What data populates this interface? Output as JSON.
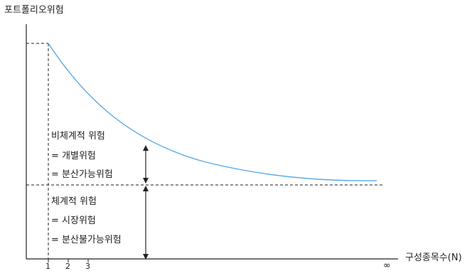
{
  "diagram": {
    "y_axis_label": "포트폴리오위험",
    "x_axis_label": "구성종목수(N)",
    "x_ticks": [
      "1",
      "2",
      "3"
    ],
    "x_infinity": "∞",
    "unsystematic_risk": {
      "line1": "비체계적 위험",
      "line2": "= 개별위험",
      "line3": "= 분산가능위험"
    },
    "systematic_risk": {
      "line1": "체계적 위험",
      "line2": "= 시장위험",
      "line3": "= 분산불가능위험"
    },
    "colors": {
      "curve": "#5aa9e6",
      "axis": "#222222"
    }
  }
}
